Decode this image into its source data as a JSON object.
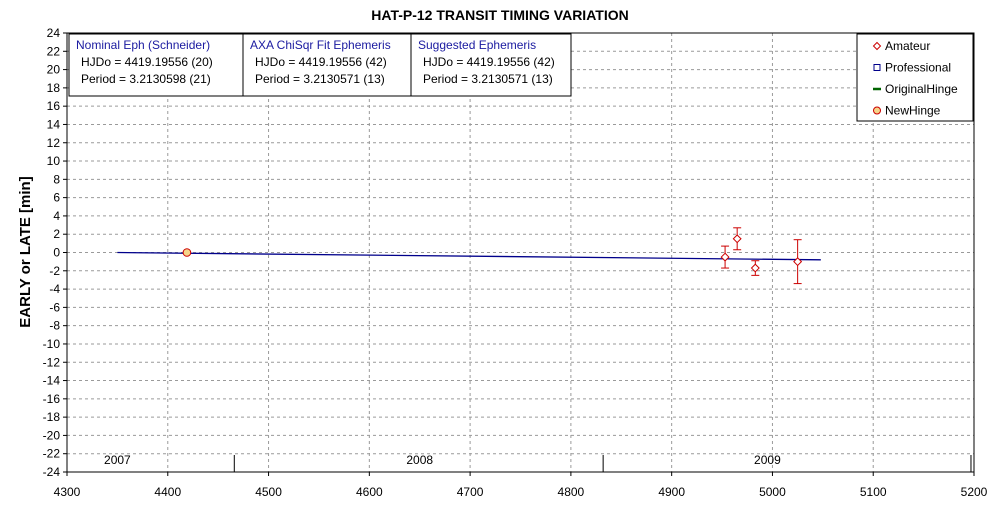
{
  "chart_data": {
    "type": "scatter",
    "title": "HAT-P-12 TRANSIT TIMING VARIATION",
    "xlabel": "",
    "ylabel": "EARLY or LATE [min]",
    "xlim": [
      4300,
      5200
    ],
    "ylim": [
      -24,
      24
    ],
    "x_ticks": [
      4300,
      4400,
      4500,
      4600,
      4700,
      4800,
      4900,
      5000,
      5100,
      5200
    ],
    "y_ticks": [
      24,
      22,
      20,
      18,
      16,
      14,
      12,
      10,
      8,
      6,
      4,
      2,
      0,
      -2,
      -4,
      -6,
      -8,
      -10,
      -12,
      -14,
      -16,
      -18,
      -20,
      -22,
      -24
    ],
    "grid": true,
    "legend_position": "top-right",
    "year_labels": [
      {
        "label": "2007",
        "x": 4350
      },
      {
        "label": "2008",
        "x": 4650
      },
      {
        "label": "2009",
        "x": 4995
      }
    ],
    "year_boundaries": [
      4466,
      4832,
      5197
    ],
    "info_boxes": [
      {
        "heading": "Nominal Eph (Schneider)",
        "line1": "HJDo = 4419.19556 (20)",
        "line2": "Period = 3.2130598 (21)"
      },
      {
        "heading": "AXA ChiSqr Fit Ephemeris",
        "line1": "HJDo = 4419.19556 (42)",
        "line2": "Period = 3.2130571 (13)"
      },
      {
        "heading": "Suggested Ephemeris",
        "line1": "HJDo = 4419.19556 (42)",
        "line2": "Period = 3.2130571 (13)"
      }
    ],
    "series": [
      {
        "name": "Amateur",
        "color": "#cc0000",
        "marker": "diamond",
        "points": [
          {
            "x": 4953,
            "y": -0.5,
            "err": 1.2
          },
          {
            "x": 4965,
            "y": 1.5,
            "err": 1.2
          },
          {
            "x": 4983,
            "y": -1.7,
            "err": 0.8
          },
          {
            "x": 5025,
            "y": -1.0,
            "err": 2.4
          }
        ]
      },
      {
        "name": "Professional",
        "color": "#00008b",
        "marker": "square",
        "points": []
      },
      {
        "name": "OriginalHinge",
        "color": "#006400",
        "marker": "line",
        "line": [
          {
            "x": 4350,
            "y": 0.0
          },
          {
            "x": 5048,
            "y": -0.8
          }
        ]
      },
      {
        "name": "NewHinge",
        "color": "#cc0000",
        "fill": "#f5d58a",
        "marker": "circle",
        "points": [
          {
            "x": 4419,
            "y": 0.0
          }
        ]
      }
    ],
    "fit_line": {
      "color": "#00008b",
      "points": [
        {
          "x": 4350,
          "y": 0.0
        },
        {
          "x": 5048,
          "y": -0.8
        }
      ]
    }
  }
}
